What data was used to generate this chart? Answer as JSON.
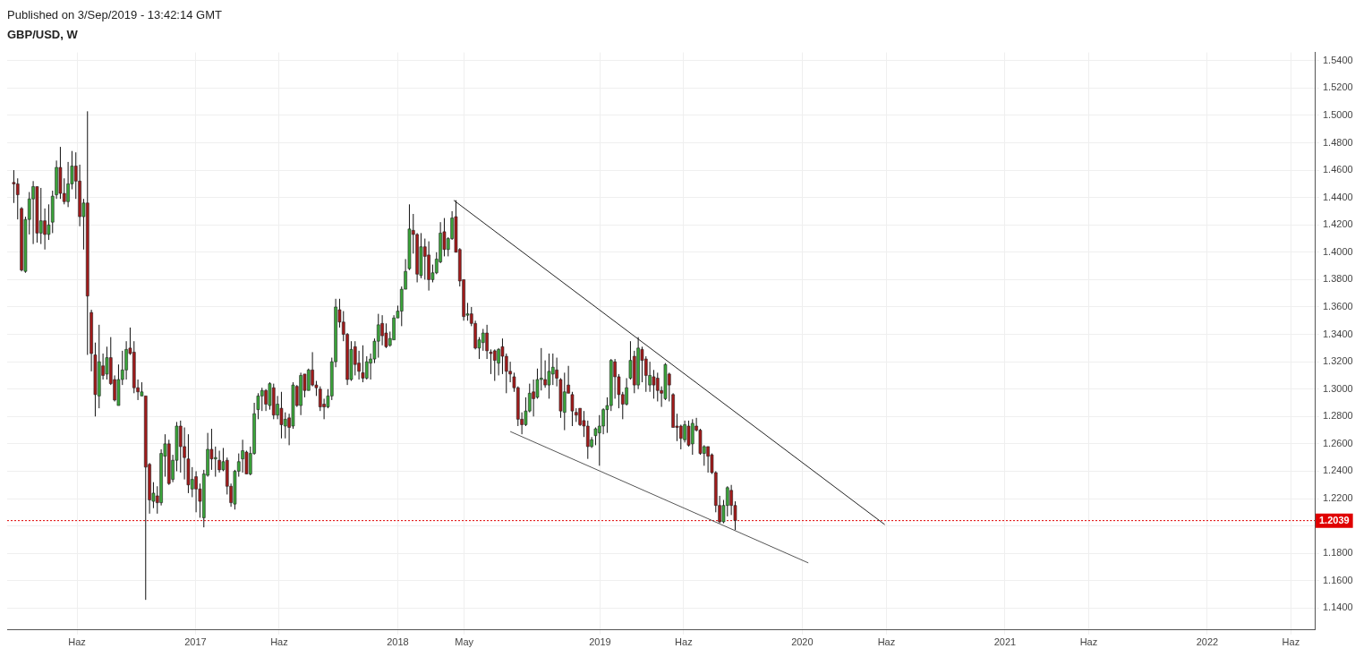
{
  "chart_data": {
    "type": "candlestick",
    "title": "Published on 3/Sep/2019 - 13:42:14 GMT",
    "subtitle": "GBP/USD, W",
    "x": [
      "2016-02-08",
      "2016-02-15",
      "2016-02-22",
      "2016-02-29",
      "2016-03-07",
      "2016-03-14",
      "2016-03-21",
      "2016-03-28",
      "2016-04-04",
      "2016-04-11",
      "2016-04-18",
      "2016-04-25",
      "2016-05-02",
      "2016-05-09",
      "2016-05-16",
      "2016-05-23",
      "2016-05-30",
      "2016-06-06",
      "2016-06-13",
      "2016-06-20",
      "2016-06-27",
      "2016-07-04",
      "2016-07-11",
      "2016-07-18",
      "2016-07-25",
      "2016-08-01",
      "2016-08-08",
      "2016-08-15",
      "2016-08-22",
      "2016-08-29",
      "2016-09-05",
      "2016-09-12",
      "2016-09-19",
      "2016-09-26",
      "2016-10-03",
      "2016-10-10",
      "2016-10-17",
      "2016-10-24",
      "2016-10-31",
      "2016-11-07",
      "2016-11-14",
      "2016-11-21",
      "2016-11-28",
      "2016-12-05",
      "2016-12-12",
      "2016-12-19",
      "2016-12-26",
      "2017-01-02",
      "2017-01-09",
      "2017-01-16",
      "2017-01-23",
      "2017-01-30",
      "2017-02-06",
      "2017-02-13",
      "2017-02-20",
      "2017-02-27",
      "2017-03-06",
      "2017-03-13",
      "2017-03-20",
      "2017-03-27",
      "2017-04-03",
      "2017-04-10",
      "2017-04-17",
      "2017-04-24",
      "2017-05-01",
      "2017-05-08",
      "2017-05-15",
      "2017-05-22",
      "2017-05-29",
      "2017-06-05",
      "2017-06-12",
      "2017-06-19",
      "2017-06-26",
      "2017-07-03",
      "2017-07-10",
      "2017-07-17",
      "2017-07-24",
      "2017-07-31",
      "2017-08-07",
      "2017-08-14",
      "2017-08-21",
      "2017-08-28",
      "2017-09-04",
      "2017-09-11",
      "2017-09-18",
      "2017-09-25",
      "2017-10-02",
      "2017-10-09",
      "2017-10-16",
      "2017-10-23",
      "2017-10-30",
      "2017-11-06",
      "2017-11-13",
      "2017-11-20",
      "2017-11-27",
      "2017-12-04",
      "2017-12-11",
      "2017-12-18",
      "2017-12-25",
      "2018-01-01",
      "2018-01-08",
      "2018-01-15",
      "2018-01-22",
      "2018-01-29",
      "2018-02-05",
      "2018-02-12",
      "2018-02-19",
      "2018-02-26",
      "2018-03-05",
      "2018-03-12",
      "2018-03-19",
      "2018-03-26",
      "2018-04-02",
      "2018-04-09",
      "2018-04-16",
      "2018-04-23",
      "2018-04-30",
      "2018-05-07",
      "2018-05-14",
      "2018-05-21",
      "2018-05-28",
      "2018-06-04",
      "2018-06-11",
      "2018-06-18",
      "2018-06-25",
      "2018-07-02",
      "2018-07-09",
      "2018-07-16",
      "2018-07-23",
      "2018-07-30",
      "2018-08-06",
      "2018-08-13",
      "2018-08-20",
      "2018-08-27",
      "2018-09-03",
      "2018-09-10",
      "2018-09-17",
      "2018-09-24",
      "2018-10-01",
      "2018-10-08",
      "2018-10-15",
      "2018-10-22",
      "2018-10-29",
      "2018-11-05",
      "2018-11-12",
      "2018-11-19",
      "2018-11-26",
      "2018-12-03",
      "2018-12-10",
      "2018-12-17",
      "2018-12-24",
      "2018-12-31",
      "2019-01-07",
      "2019-01-14",
      "2019-01-21",
      "2019-01-28",
      "2019-02-04",
      "2019-02-11",
      "2019-02-18",
      "2019-02-25",
      "2019-03-04",
      "2019-03-11",
      "2019-03-18",
      "2019-03-25",
      "2019-04-01",
      "2019-04-08",
      "2019-04-15",
      "2019-04-22",
      "2019-04-29",
      "2019-05-06",
      "2019-05-13",
      "2019-05-20",
      "2019-05-27",
      "2019-06-03",
      "2019-06-10",
      "2019-06-17",
      "2019-06-24",
      "2019-07-01",
      "2019-07-08",
      "2019-07-15",
      "2019-07-22",
      "2019-07-29",
      "2019-08-05",
      "2019-08-12",
      "2019-08-19",
      "2019-08-26",
      "2019-09-02"
    ],
    "ohlc": [
      [
        1.451,
        1.46,
        1.436,
        1.45
      ],
      [
        1.45,
        1.454,
        1.424,
        1.442
      ],
      [
        1.432,
        1.433,
        1.386,
        1.387
      ],
      [
        1.386,
        1.426,
        1.385,
        1.424
      ],
      [
        1.424,
        1.444,
        1.413,
        1.439
      ],
      [
        1.439,
        1.452,
        1.406,
        1.448
      ],
      [
        1.448,
        1.448,
        1.407,
        1.414
      ],
      [
        1.414,
        1.447,
        1.406,
        1.423
      ],
      [
        1.423,
        1.432,
        1.402,
        1.413
      ],
      [
        1.413,
        1.435,
        1.409,
        1.42
      ],
      [
        1.422,
        1.445,
        1.414,
        1.441
      ],
      [
        1.442,
        1.467,
        1.439,
        1.462
      ],
      [
        1.462,
        1.477,
        1.439,
        1.443
      ],
      [
        1.443,
        1.454,
        1.435,
        1.437
      ],
      [
        1.437,
        1.466,
        1.433,
        1.45
      ],
      [
        1.45,
        1.474,
        1.446,
        1.463
      ],
      [
        1.463,
        1.473,
        1.439,
        1.452
      ],
      [
        1.452,
        1.464,
        1.419,
        1.426
      ],
      [
        1.426,
        1.439,
        1.402,
        1.436
      ],
      [
        1.436,
        1.503,
        1.325,
        1.368
      ],
      [
        1.356,
        1.358,
        1.313,
        1.326
      ],
      [
        1.325,
        1.334,
        1.28,
        1.296
      ],
      [
        1.295,
        1.347,
        1.286,
        1.32
      ],
      [
        1.317,
        1.326,
        1.307,
        1.31
      ],
      [
        1.311,
        1.331,
        1.307,
        1.323
      ],
      [
        1.323,
        1.338,
        1.303,
        1.304
      ],
      [
        1.307,
        1.31,
        1.291,
        1.292
      ],
      [
        1.288,
        1.318,
        1.288,
        1.307
      ],
      [
        1.307,
        1.328,
        1.303,
        1.314
      ],
      [
        1.314,
        1.335,
        1.307,
        1.329
      ],
      [
        1.33,
        1.345,
        1.325,
        1.326
      ],
      [
        1.327,
        1.335,
        1.297,
        1.301
      ],
      [
        1.301,
        1.307,
        1.292,
        1.298
      ],
      [
        1.295,
        1.305,
        1.295,
        1.298
      ],
      [
        1.295,
        1.295,
        1.146,
        1.243
      ],
      [
        1.245,
        1.246,
        1.209,
        1.219
      ],
      [
        1.218,
        1.232,
        1.213,
        1.224
      ],
      [
        1.222,
        1.229,
        1.209,
        1.217
      ],
      [
        1.217,
        1.256,
        1.215,
        1.253
      ],
      [
        1.251,
        1.267,
        1.236,
        1.26
      ],
      [
        1.26,
        1.263,
        1.23,
        1.231
      ],
      [
        1.234,
        1.252,
        1.232,
        1.248
      ],
      [
        1.248,
        1.276,
        1.24,
        1.273
      ],
      [
        1.273,
        1.277,
        1.239,
        1.258
      ],
      [
        1.258,
        1.272,
        1.234,
        1.25
      ],
      [
        1.249,
        1.267,
        1.224,
        1.23
      ],
      [
        1.227,
        1.243,
        1.221,
        1.234
      ],
      [
        1.236,
        1.24,
        1.21,
        1.227
      ],
      [
        1.227,
        1.231,
        1.206,
        1.218
      ],
      [
        1.206,
        1.241,
        1.199,
        1.238
      ],
      [
        1.237,
        1.268,
        1.236,
        1.256
      ],
      [
        1.256,
        1.271,
        1.241,
        1.249
      ],
      [
        1.249,
        1.258,
        1.236,
        1.25
      ],
      [
        1.248,
        1.255,
        1.239,
        1.241
      ],
      [
        1.241,
        1.257,
        1.24,
        1.247
      ],
      [
        1.248,
        1.25,
        1.223,
        1.229
      ],
      [
        1.229,
        1.231,
        1.214,
        1.217
      ],
      [
        1.216,
        1.241,
        1.212,
        1.24
      ],
      [
        1.24,
        1.253,
        1.236,
        1.247
      ],
      [
        1.249,
        1.263,
        1.239,
        1.255
      ],
      [
        1.254,
        1.255,
        1.238,
        1.238
      ],
      [
        1.238,
        1.258,
        1.237,
        1.253
      ],
      [
        1.253,
        1.29,
        1.252,
        1.282
      ],
      [
        1.285,
        1.297,
        1.278,
        1.295
      ],
      [
        1.295,
        1.301,
        1.284,
        1.299
      ],
      [
        1.299,
        1.3,
        1.284,
        1.289
      ],
      [
        1.288,
        1.305,
        1.285,
        1.304
      ],
      [
        1.301,
        1.304,
        1.278,
        1.281
      ],
      [
        1.281,
        1.295,
        1.278,
        1.289
      ],
      [
        1.286,
        1.298,
        1.264,
        1.274
      ],
      [
        1.273,
        1.283,
        1.264,
        1.278
      ],
      [
        1.279,
        1.282,
        1.259,
        1.272
      ],
      [
        1.273,
        1.305,
        1.271,
        1.303
      ],
      [
        1.302,
        1.303,
        1.287,
        1.288
      ],
      [
        1.288,
        1.312,
        1.281,
        1.31
      ],
      [
        1.311,
        1.311,
        1.294,
        1.299
      ],
      [
        1.299,
        1.315,
        1.299,
        1.314
      ],
      [
        1.314,
        1.327,
        1.302,
        1.303
      ],
      [
        1.303,
        1.306,
        1.295,
        1.301
      ],
      [
        1.3,
        1.302,
        1.284,
        1.287
      ],
      [
        1.289,
        1.293,
        1.278,
        1.287
      ],
      [
        1.287,
        1.3,
        1.286,
        1.295
      ],
      [
        1.295,
        1.323,
        1.292,
        1.32
      ],
      [
        1.32,
        1.366,
        1.316,
        1.36
      ],
      [
        1.358,
        1.366,
        1.345,
        1.349
      ],
      [
        1.349,
        1.357,
        1.335,
        1.34
      ],
      [
        1.34,
        1.341,
        1.303,
        1.307
      ],
      [
        1.307,
        1.335,
        1.306,
        1.329
      ],
      [
        1.331,
        1.335,
        1.31,
        1.318
      ],
      [
        1.319,
        1.328,
        1.307,
        1.313
      ],
      [
        1.312,
        1.332,
        1.305,
        1.308
      ],
      [
        1.308,
        1.324,
        1.307,
        1.32
      ],
      [
        1.319,
        1.326,
        1.307,
        1.322
      ],
      [
        1.322,
        1.337,
        1.319,
        1.335
      ],
      [
        1.335,
        1.355,
        1.323,
        1.347
      ],
      [
        1.348,
        1.354,
        1.332,
        1.339
      ],
      [
        1.341,
        1.348,
        1.33,
        1.331
      ],
      [
        1.332,
        1.342,
        1.331,
        1.337
      ],
      [
        1.336,
        1.354,
        1.336,
        1.352
      ],
      [
        1.352,
        1.361,
        1.352,
        1.357
      ],
      [
        1.357,
        1.375,
        1.346,
        1.373
      ],
      [
        1.373,
        1.395,
        1.373,
        1.386
      ],
      [
        1.388,
        1.435,
        1.387,
        1.417
      ],
      [
        1.416,
        1.428,
        1.399,
        1.413
      ],
      [
        1.413,
        1.414,
        1.378,
        1.384
      ],
      [
        1.383,
        1.414,
        1.381,
        1.404
      ],
      [
        1.404,
        1.41,
        1.38,
        1.397
      ],
      [
        1.398,
        1.408,
        1.372,
        1.38
      ],
      [
        1.38,
        1.391,
        1.378,
        1.385
      ],
      [
        1.385,
        1.4,
        1.384,
        1.395
      ],
      [
        1.393,
        1.422,
        1.392,
        1.414
      ],
      [
        1.415,
        1.425,
        1.397,
        1.402
      ],
      [
        1.402,
        1.411,
        1.397,
        1.41
      ],
      [
        1.41,
        1.43,
        1.409,
        1.425
      ],
      [
        1.426,
        1.438,
        1.4,
        1.4
      ],
      [
        1.402,
        1.403,
        1.375,
        1.379
      ],
      [
        1.38,
        1.38,
        1.35,
        1.353
      ],
      [
        1.354,
        1.363,
        1.35,
        1.355
      ],
      [
        1.355,
        1.36,
        1.346,
        1.348
      ],
      [
        1.348,
        1.35,
        1.329,
        1.33
      ],
      [
        1.33,
        1.338,
        1.322,
        1.336
      ],
      [
        1.334,
        1.344,
        1.328,
        1.341
      ],
      [
        1.341,
        1.347,
        1.322,
        1.328
      ],
      [
        1.327,
        1.329,
        1.311,
        1.326
      ],
      [
        1.328,
        1.329,
        1.306,
        1.321
      ],
      [
        1.319,
        1.33,
        1.31,
        1.329
      ],
      [
        1.331,
        1.337,
        1.311,
        1.324
      ],
      [
        1.324,
        1.326,
        1.297,
        1.313
      ],
      [
        1.313,
        1.32,
        1.305,
        1.311
      ],
      [
        1.309,
        1.312,
        1.298,
        1.301
      ],
      [
        1.301,
        1.302,
        1.273,
        1.278
      ],
      [
        1.278,
        1.283,
        1.267,
        1.274
      ],
      [
        1.274,
        1.294,
        1.273,
        1.284
      ],
      [
        1.284,
        1.304,
        1.283,
        1.297
      ],
      [
        1.298,
        1.307,
        1.28,
        1.293
      ],
      [
        1.294,
        1.315,
        1.293,
        1.307
      ],
      [
        1.307,
        1.33,
        1.299,
        1.308
      ],
      [
        1.307,
        1.321,
        1.301,
        1.303
      ],
      [
        1.303,
        1.326,
        1.293,
        1.313
      ],
      [
        1.311,
        1.326,
        1.303,
        1.316
      ],
      [
        1.314,
        1.323,
        1.302,
        1.308
      ],
      [
        1.307,
        1.308,
        1.279,
        1.284
      ],
      [
        1.283,
        1.312,
        1.27,
        1.298
      ],
      [
        1.303,
        1.317,
        1.297,
        1.297
      ],
      [
        1.296,
        1.298,
        1.273,
        1.284
      ],
      [
        1.283,
        1.286,
        1.276,
        1.281
      ],
      [
        1.286,
        1.286,
        1.273,
        1.274
      ],
      [
        1.277,
        1.284,
        1.265,
        1.273
      ],
      [
        1.273,
        1.277,
        1.249,
        1.258
      ],
      [
        1.258,
        1.265,
        1.257,
        1.263
      ],
      [
        1.266,
        1.272,
        1.259,
        1.271
      ],
      [
        1.268,
        1.281,
        1.244,
        1.273
      ],
      [
        1.273,
        1.286,
        1.267,
        1.285
      ],
      [
        1.285,
        1.294,
        1.268,
        1.288
      ],
      [
        1.288,
        1.322,
        1.284,
        1.321
      ],
      [
        1.32,
        1.322,
        1.293,
        1.309
      ],
      [
        1.309,
        1.311,
        1.286,
        1.296
      ],
      [
        1.296,
        1.298,
        1.278,
        1.289
      ],
      [
        1.289,
        1.308,
        1.288,
        1.301
      ],
      [
        1.308,
        1.335,
        1.307,
        1.321
      ],
      [
        1.324,
        1.328,
        1.297,
        1.303
      ],
      [
        1.303,
        1.338,
        1.3,
        1.33
      ],
      [
        1.329,
        1.331,
        1.305,
        1.321
      ],
      [
        1.322,
        1.324,
        1.298,
        1.31
      ],
      [
        1.303,
        1.32,
        1.298,
        1.31
      ],
      [
        1.309,
        1.314,
        1.293,
        1.303
      ],
      [
        1.308,
        1.312,
        1.291,
        1.299
      ],
      [
        1.299,
        1.302,
        1.287,
        1.297
      ],
      [
        1.293,
        1.319,
        1.292,
        1.318
      ],
      [
        1.311,
        1.312,
        1.291,
        1.303
      ],
      [
        1.296,
        1.297,
        1.272,
        1.272
      ],
      [
        1.273,
        1.282,
        1.262,
        1.272
      ],
      [
        1.273,
        1.274,
        1.256,
        1.264
      ],
      [
        1.263,
        1.277,
        1.261,
        1.274
      ],
      [
        1.273,
        1.277,
        1.258,
        1.259
      ],
      [
        1.26,
        1.278,
        1.252,
        1.275
      ],
      [
        1.273,
        1.279,
        1.269,
        1.27
      ],
      [
        1.27,
        1.271,
        1.252,
        1.253
      ],
      [
        1.253,
        1.259,
        1.244,
        1.258
      ],
      [
        1.258,
        1.258,
        1.239,
        1.251
      ],
      [
        1.252,
        1.253,
        1.238,
        1.239
      ],
      [
        1.239,
        1.24,
        1.21,
        1.215
      ],
      [
        1.215,
        1.222,
        1.202,
        1.203
      ],
      [
        1.203,
        1.219,
        1.202,
        1.215
      ],
      [
        1.215,
        1.229,
        1.207,
        1.228
      ],
      [
        1.226,
        1.23,
        1.208,
        1.215
      ],
      [
        1.215,
        1.218,
        1.197,
        1.204
      ]
    ],
    "series": [
      {
        "type": "line",
        "color": "#222222",
        "x": [
          "2018-04-12",
          "2020-05-29"
        ],
        "values": [
          1.438,
          1.201
        ]
      },
      {
        "type": "line",
        "color": "#555555",
        "x": [
          "2018-07-23",
          "2020-01-12"
        ],
        "values": [
          1.269,
          1.173
        ]
      }
    ],
    "xlim": [
      "2016-01-27",
      "2022-07-14"
    ],
    "xticks": [
      {
        "value": "2016-06-01",
        "label": "Haz"
      },
      {
        "value": "2017-01-01",
        "label": "2017"
      },
      {
        "value": "2017-06-01",
        "label": "Haz"
      },
      {
        "value": "2018-01-01",
        "label": "2018"
      },
      {
        "value": "2018-05-01",
        "label": "May"
      },
      {
        "value": "2019-01-01",
        "label": "2019"
      },
      {
        "value": "2019-06-01",
        "label": "Haz"
      },
      {
        "value": "2020-01-01",
        "label": "2020"
      },
      {
        "value": "2020-06-01",
        "label": "Haz"
      },
      {
        "value": "2021-01-01",
        "label": "2021"
      },
      {
        "value": "2021-06-01",
        "label": "Haz"
      },
      {
        "value": "2022-01-01",
        "label": "2022"
      },
      {
        "value": "2022-06-01",
        "label": "Haz"
      }
    ],
    "ylim": [
      1.124,
      1.546
    ],
    "yticks": [
      {
        "value": 1.14,
        "label": "1.1400"
      },
      {
        "value": 1.16,
        "label": "1.1600"
      },
      {
        "value": 1.18,
        "label": "1.1800"
      },
      {
        "value": 1.2,
        "label": null
      },
      {
        "value": 1.22,
        "label": "1.2200"
      },
      {
        "value": 1.24,
        "label": "1.2400"
      },
      {
        "value": 1.26,
        "label": "1.2600"
      },
      {
        "value": 1.28,
        "label": "1.2800"
      },
      {
        "value": 1.3,
        "label": "1.3000"
      },
      {
        "value": 1.32,
        "label": "1.3200"
      },
      {
        "value": 1.34,
        "label": "1.3400"
      },
      {
        "value": 1.36,
        "label": "1.3600"
      },
      {
        "value": 1.38,
        "label": "1.3800"
      },
      {
        "value": 1.4,
        "label": "1.4000"
      },
      {
        "value": 1.42,
        "label": "1.4200"
      },
      {
        "value": 1.44,
        "label": "1.4400"
      },
      {
        "value": 1.46,
        "label": "1.4600"
      },
      {
        "value": 1.48,
        "label": "1.4800"
      },
      {
        "value": 1.5,
        "label": "1.5000"
      },
      {
        "value": 1.52,
        "label": "1.5200"
      },
      {
        "value": 1.54,
        "label": "1.5400"
      }
    ],
    "ref_lines": [
      {
        "axis": "y",
        "value": 1.2039,
        "label": "1.2039",
        "color": "#e00000",
        "line_style": "dotted"
      }
    ],
    "grid": true
  }
}
